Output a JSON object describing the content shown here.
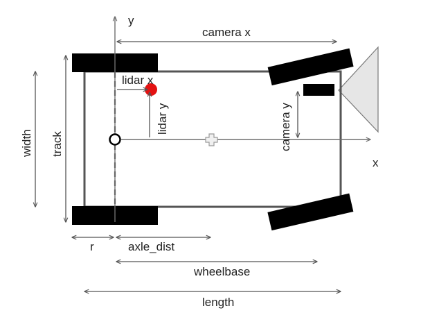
{
  "labels": {
    "y_axis": "y",
    "x_axis": "x",
    "camera_x": "camera x",
    "camera_y": "camera y",
    "lidar_x": "lidar x",
    "lidar_y": "lidar y",
    "width": "width",
    "track": "track",
    "r": "r",
    "axle_dist": "axle_dist",
    "wheelbase": "wheelbase",
    "length": "length"
  },
  "colors": {
    "body_outline": "#555555",
    "wheel": "#000000",
    "lidar": "#e31212",
    "camera_fov": "#e6e6e6",
    "axis_line": "#6e6e6e",
    "dimension_line": "#555555"
  },
  "icons": {
    "origin": "origin-circle-icon",
    "center": "center-cross-icon",
    "lidar": "lidar-dot-icon",
    "camera": "camera-icon"
  }
}
